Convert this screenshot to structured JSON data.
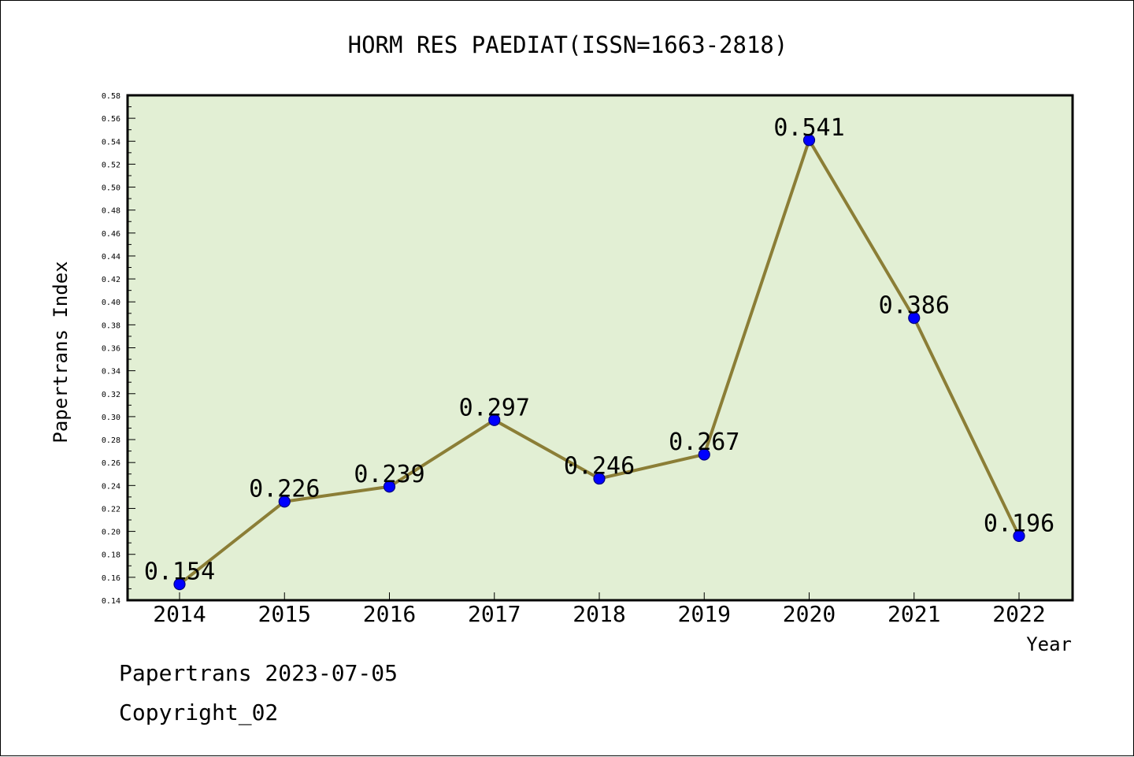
{
  "chart_data": {
    "type": "line",
    "title": "HORM RES PAEDIAT(ISSN=1663-2818)",
    "xlabel": "Year",
    "ylabel": "Papertrans Index",
    "categories": [
      "2014",
      "2015",
      "2016",
      "2017",
      "2018",
      "2019",
      "2020",
      "2021",
      "2022"
    ],
    "series": [
      {
        "values": [
          0.154,
          0.226,
          0.239,
          0.297,
          0.246,
          0.267,
          0.541,
          0.386,
          0.196
        ]
      }
    ],
    "data_labels": [
      "0.154",
      "0.226",
      "0.239",
      "0.297",
      "0.246",
      "0.267",
      "0.541",
      "0.386",
      "0.196"
    ],
    "ylim": [
      0.14,
      0.58
    ],
    "yticks": [
      "0.14",
      "0.16",
      "0.18",
      "0.20",
      "0.22",
      "0.24",
      "0.26",
      "0.28",
      "0.30",
      "0.32",
      "0.34",
      "0.36",
      "0.38",
      "0.40",
      "0.42",
      "0.44",
      "0.46",
      "0.48",
      "0.50",
      "0.52",
      "0.54",
      "0.56",
      "0.58"
    ],
    "grid": false,
    "colors": {
      "plot_background": "#e2efd4",
      "line": "#8b7e36",
      "marker": "#0000ff",
      "marker_edge": "#000080"
    }
  },
  "footer": {
    "line1": "Papertrans 2023-07-05",
    "line2": "Copyright_02"
  }
}
